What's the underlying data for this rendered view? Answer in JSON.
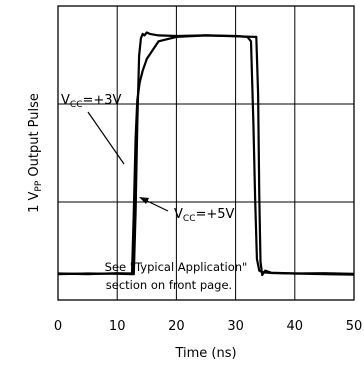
{
  "chart_data": {
    "type": "line",
    "xlabel": "Time (ns)",
    "ylabel_main": "1 V",
    "ylabel_sub": "PP",
    "ylabel_rest": " Output Pulse",
    "xlim": [
      0,
      50
    ],
    "xticks": [
      "0",
      "10",
      "20",
      "30",
      "40",
      "50"
    ],
    "grid": true,
    "series": [
      {
        "name": "VCC=+3V",
        "x": [
          0,
          5,
          10,
          12.5,
          12.8,
          13.1,
          13.4,
          13.8,
          14.3,
          15,
          17,
          20,
          25,
          30,
          32,
          32.6,
          33,
          33.3,
          33.6,
          34,
          34.5,
          36,
          40,
          45,
          50
        ],
        "y": [
          0.09,
          0.088,
          0.091,
          0.09,
          0.3,
          0.55,
          0.68,
          0.74,
          0.78,
          0.82,
          0.88,
          0.895,
          0.9,
          0.898,
          0.895,
          0.88,
          0.6,
          0.35,
          0.14,
          0.1,
          0.095,
          0.092,
          0.09,
          0.091,
          0.089
        ]
      },
      {
        "name": "VCC=+5V",
        "x": [
          0,
          5,
          10,
          12.8,
          13.1,
          13.4,
          13.7,
          14,
          14.3,
          14.6,
          15,
          15.5,
          17,
          20,
          25,
          30,
          33.5,
          33.8,
          34.0,
          34.2,
          34.5,
          35,
          36,
          40,
          45,
          50
        ],
        "y": [
          0.088,
          0.09,
          0.089,
          0.088,
          0.3,
          0.6,
          0.83,
          0.89,
          0.905,
          0.9,
          0.91,
          0.905,
          0.9,
          0.898,
          0.9,
          0.897,
          0.895,
          0.7,
          0.35,
          0.13,
          0.085,
          0.1,
          0.093,
          0.09,
          0.088,
          0.086
        ]
      }
    ],
    "annotations": {
      "vcc3": {
        "main": "V",
        "sub": "CC",
        "rest": "=+3V"
      },
      "vcc5": {
        "main": "V",
        "sub": "CC",
        "rest": "=+5V"
      },
      "note_line1": "See \"Typical Application\"",
      "note_line2": "section on front page."
    }
  }
}
